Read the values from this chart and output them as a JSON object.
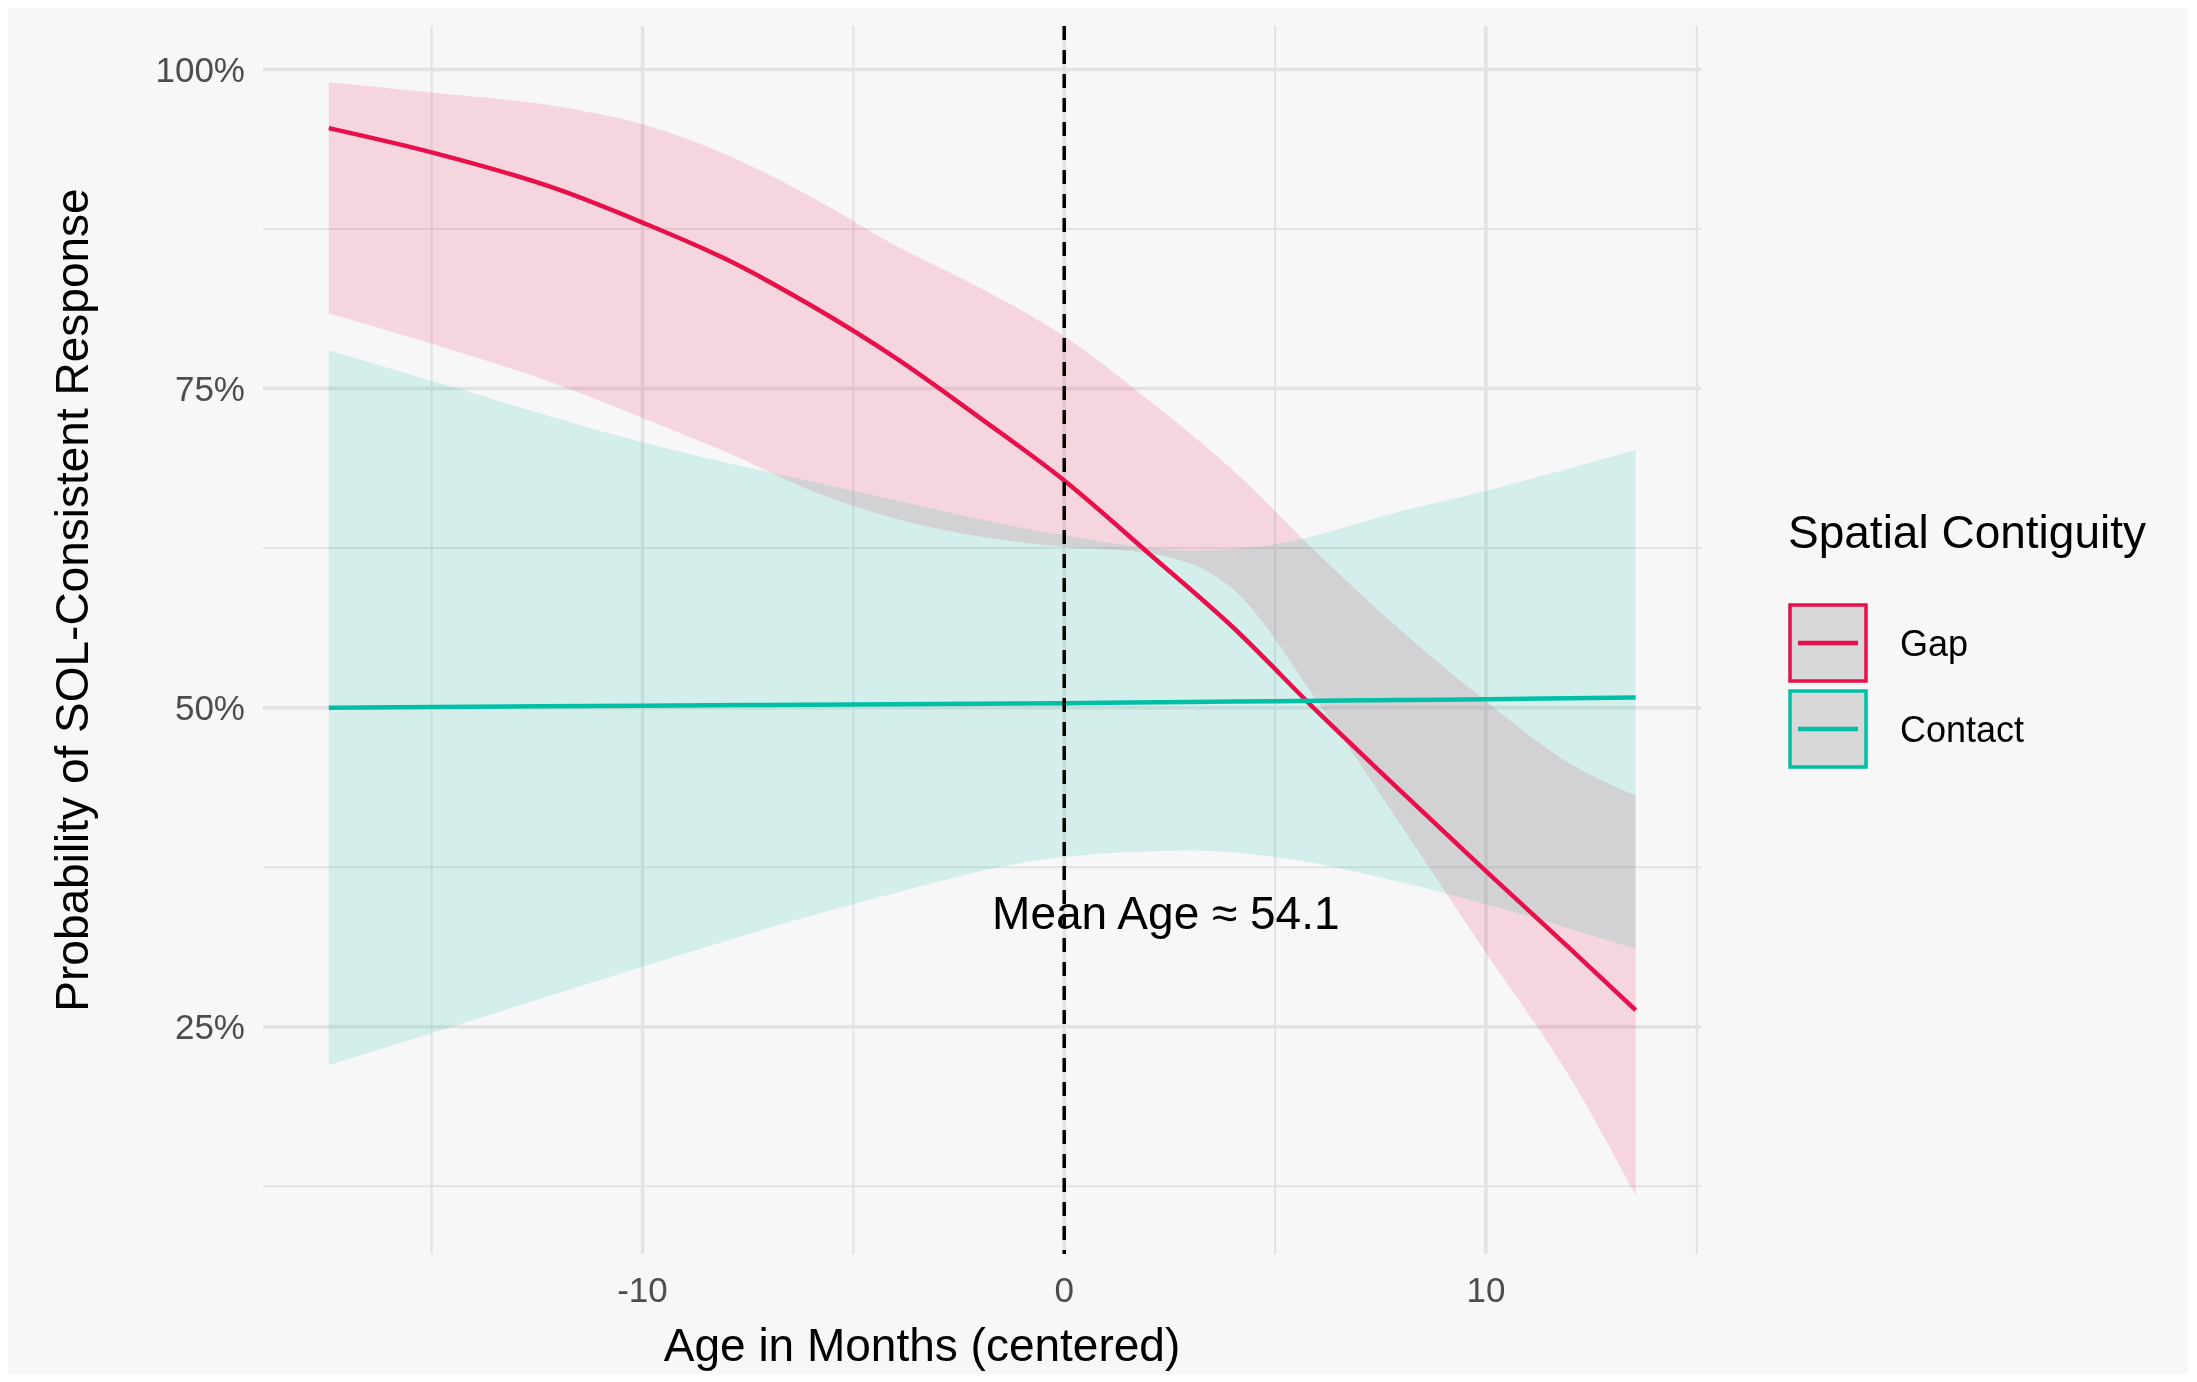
{
  "chart_data": {
    "type": "line",
    "xlabel": "Age in Months (centered)",
    "ylabel": "Probability of SOL-Consistent Response",
    "legend_title": "Spatial Contiguity",
    "legend": "right",
    "grid": true,
    "xlim": [
      -19.0,
      15.1
    ],
    "ylim": [
      7.2,
      103.4
    ],
    "xticks": [
      {
        "value": -15,
        "label": null
      },
      {
        "value": -10,
        "label": "-10"
      },
      {
        "value": -5,
        "label": null
      },
      {
        "value": 0,
        "label": "0"
      },
      {
        "value": 5,
        "label": null
      },
      {
        "value": 10,
        "label": "10"
      },
      {
        "value": 15,
        "label": null
      }
    ],
    "yticks": [
      {
        "value": 12.5,
        "label": null
      },
      {
        "value": 25,
        "label": "25%"
      },
      {
        "value": 37.5,
        "label": null
      },
      {
        "value": 50,
        "label": "50%"
      },
      {
        "value": 62.5,
        "label": null
      },
      {
        "value": 75,
        "label": "75%"
      },
      {
        "value": 87.5,
        "label": null
      },
      {
        "value": 100,
        "label": "100%"
      }
    ],
    "series": [
      {
        "name": "Gap",
        "color": "#e8104a",
        "x": [
          -17.44,
          -15,
          -12,
          -10,
          -8,
          -6,
          -4,
          -2,
          0,
          2,
          4,
          6,
          8,
          10,
          12,
          13.55
        ],
        "values": [
          95.4,
          93.5,
          90.6,
          88.0,
          85.1,
          81.5,
          77.4,
          72.7,
          67.8,
          62.1,
          56.3,
          49.7,
          43.4,
          37.2,
          31.1,
          26.3
        ],
        "upper": [
          99.0,
          98.2,
          97.1,
          95.7,
          93.3,
          90.0,
          86.2,
          82.9,
          79.1,
          74.1,
          68.6,
          62.1,
          56.0,
          50.5,
          45.6,
          43.1
        ],
        "lower": [
          80.9,
          78.5,
          75.3,
          72.7,
          70.0,
          67.0,
          64.8,
          63.4,
          62.6,
          62.1,
          59.3,
          50.5,
          40.7,
          30.8,
          21.0,
          11.8
        ]
      },
      {
        "name": "Contact",
        "color": "#00bfa5",
        "x": [
          -17.44,
          -15,
          -10,
          -5,
          0,
          3,
          5,
          8,
          10,
          13.55
        ],
        "values": [
          50.0,
          50.05,
          50.15,
          50.25,
          50.35,
          50.45,
          50.5,
          50.6,
          50.65,
          50.8
        ],
        "upper": [
          78.0,
          75.6,
          70.8,
          67.0,
          63.5,
          62.3,
          62.8,
          65.4,
          67.0,
          70.2
        ],
        "lower": [
          22.0,
          24.5,
          29.7,
          34.6,
          38.3,
          38.8,
          38.3,
          36.3,
          34.6,
          31.1
        ]
      }
    ],
    "ref_lines": [
      {
        "axis": "x",
        "value": 0,
        "line_style": "dashed",
        "color": "#000000"
      }
    ],
    "annotations": [
      "Mean Age ≈ 54.1"
    ]
  }
}
